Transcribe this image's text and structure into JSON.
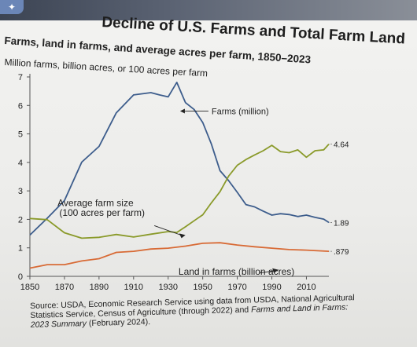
{
  "main_title": "Decline of U.S. Farms and Total Farm Land",
  "chart_data": {
    "type": "line",
    "title": "Farms, land in farms, and average acres per farm, 1850–2023",
    "subtitle": "Million farms, billion acres, or 100 acres per farm",
    "xlabel": "",
    "ylabel": "",
    "xlim": [
      1850,
      2023
    ],
    "ylim": [
      0,
      7
    ],
    "x_ticks": [
      "1850",
      "1870",
      "1890",
      "1910",
      "1930",
      "1950",
      "1970",
      "1990",
      "2010"
    ],
    "y_ticks": [
      "0",
      "1",
      "2",
      "3",
      "4",
      "5",
      "6",
      "7"
    ],
    "grid": false,
    "series": [
      {
        "name": "Farms (million)",
        "color": "#3d5d8c",
        "x": [
          1850,
          1860,
          1870,
          1880,
          1890,
          1900,
          1910,
          1920,
          1925,
          1930,
          1935,
          1940,
          1945,
          1950,
          1955,
          1960,
          1965,
          1970,
          1975,
          1980,
          1985,
          1990,
          1995,
          2000,
          2005,
          2010,
          2015,
          2020,
          2023
        ],
        "values": [
          1.45,
          2.04,
          2.66,
          4.01,
          4.56,
          5.74,
          6.37,
          6.45,
          6.37,
          6.3,
          6.81,
          6.1,
          5.86,
          5.4,
          4.65,
          3.71,
          3.36,
          2.95,
          2.52,
          2.44,
          2.29,
          2.15,
          2.2,
          2.17,
          2.1,
          2.15,
          2.07,
          2.01,
          1.89
        ]
      },
      {
        "name": "Average farm size (100 acres per farm)",
        "color": "#8a9a2a",
        "x": [
          1850,
          1860,
          1870,
          1880,
          1890,
          1900,
          1910,
          1920,
          1930,
          1935,
          1940,
          1945,
          1950,
          1955,
          1960,
          1965,
          1970,
          1975,
          1980,
          1985,
          1990,
          1995,
          2000,
          2005,
          2010,
          2015,
          2020,
          2023
        ],
        "values": [
          2.03,
          1.99,
          1.53,
          1.34,
          1.37,
          1.47,
          1.38,
          1.48,
          1.57,
          1.54,
          1.74,
          1.95,
          2.16,
          2.58,
          2.97,
          3.52,
          3.9,
          4.1,
          4.26,
          4.41,
          4.6,
          4.38,
          4.34,
          4.44,
          4.18,
          4.41,
          4.44,
          4.64
        ]
      },
      {
        "name": "Land in farms (billion acres)",
        "color": "#d86a35",
        "x": [
          1850,
          1860,
          1870,
          1880,
          1890,
          1900,
          1910,
          1920,
          1930,
          1940,
          1950,
          1960,
          1970,
          1980,
          1990,
          2000,
          2010,
          2023
        ],
        "values": [
          0.29,
          0.41,
          0.41,
          0.54,
          0.62,
          0.84,
          0.88,
          0.96,
          0.99,
          1.06,
          1.16,
          1.18,
          1.1,
          1.04,
          0.99,
          0.94,
          0.92,
          0.879
        ]
      }
    ],
    "annotations": {
      "farms": "Farms (million)",
      "avg_size_line1": "Average farm size",
      "avg_size_line2": "(100 acres per farm)",
      "land": "Land in farms (billion acres)",
      "end_farms": "1.89",
      "end_avg": "4.64",
      "end_land": ".879"
    }
  },
  "source": {
    "line1": "Source: USDA, Economic Research Service using data from USDA, National Agricultural",
    "line2_a": "Statistics Service, Census of Agriculture (through 2022) and ",
    "line2_b": "Farms and Land in Farms:",
    "line3": "2023 Summary",
    "line3_b": " (February 2024)."
  }
}
